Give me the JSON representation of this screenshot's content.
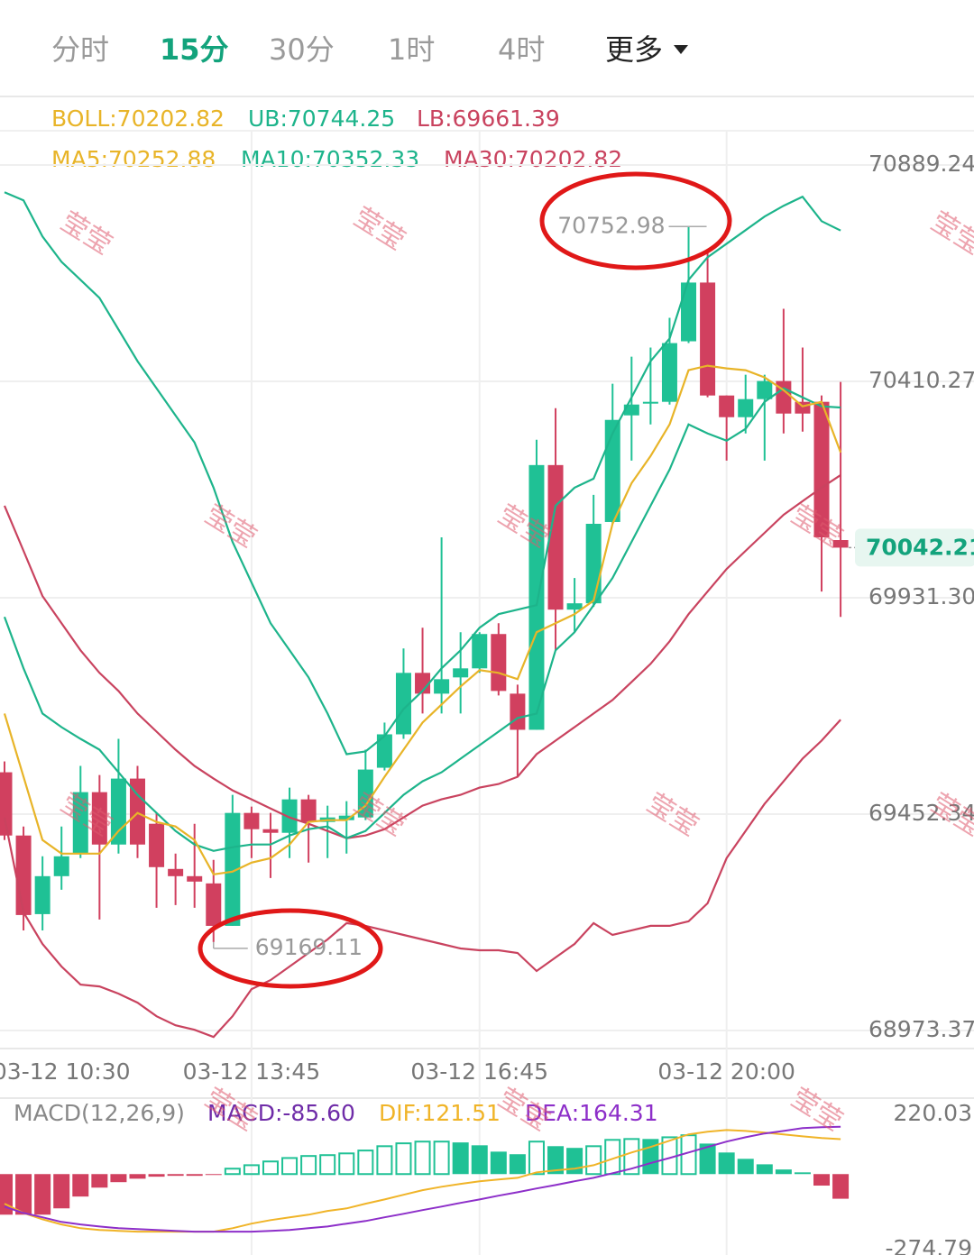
{
  "tabs": [
    {
      "label": "分时"
    },
    {
      "label": "15分",
      "active": true
    },
    {
      "label": "30分"
    },
    {
      "label": "1时"
    },
    {
      "label": "4时"
    },
    {
      "label": "更多",
      "menu": true
    }
  ],
  "watermark": "莹莹",
  "chart_data": [
    {
      "type": "candlestick",
      "legend": [
        [
          {
            "text": "BOLL:70202.82",
            "color": "#e8b428"
          },
          {
            "text": "UB:70744.25",
            "color": "#1db48b"
          },
          {
            "text": "LB:69661.39",
            "color": "#c9435f"
          }
        ],
        [
          {
            "text": "MA5:70252.88",
            "color": "#e8b428"
          },
          {
            "text": "MA10:70352.33",
            "color": "#1db48b"
          },
          {
            "text": "MA30:70202.82",
            "color": "#c9435f"
          }
        ]
      ],
      "categories": [
        null,
        null,
        null,
        "03-12 10:30",
        null,
        null,
        null,
        null,
        null,
        null,
        null,
        null,
        null,
        "03-12 13:45",
        null,
        null,
        null,
        null,
        null,
        null,
        null,
        null,
        null,
        null,
        null,
        "03-12 16:45",
        null,
        null,
        null,
        null,
        null,
        null,
        null,
        null,
        null,
        null,
        null,
        null,
        "03-12 20:00",
        null,
        null,
        null,
        null,
        null,
        null
      ],
      "open": [
        69545,
        69405,
        69231,
        69315,
        69365,
        69501,
        69385,
        69531,
        69431,
        69331,
        69315,
        69299,
        69205,
        69455,
        69419,
        69411,
        69485,
        69435,
        69439,
        69445,
        69555,
        69629,
        69765,
        69719,
        69755,
        69775,
        69851,
        69719,
        69639,
        70225,
        69905,
        69919,
        70099,
        70335,
        70361,
        70365,
        70499,
        70629,
        70379,
        70331,
        70371,
        70411,
        70365,
        70365,
        70059
      ],
      "high": [
        69569,
        69425,
        69359,
        69425,
        69559,
        69539,
        69619,
        69559,
        69455,
        69365,
        69431,
        69351,
        69495,
        69469,
        69455,
        69511,
        69495,
        69471,
        69481,
        69595,
        69655,
        69819,
        69865,
        70065,
        69855,
        69855,
        69875,
        69739,
        70281,
        70351,
        69975,
        70159,
        70405,
        70465,
        70485,
        70551,
        70752.98,
        70695,
        70379,
        70425,
        70425,
        70571,
        70485,
        70379,
        70409
      ],
      "low": [
        69395,
        69195,
        69195,
        69285,
        69355,
        69219,
        69365,
        69355,
        69245,
        69251,
        69245,
        69169.11,
        69205,
        69355,
        69311,
        69355,
        69345,
        69355,
        69365,
        69439,
        69549,
        69619,
        69675,
        69675,
        69675,
        69765,
        69715,
        69535,
        69639,
        69815,
        69855,
        69911,
        70095,
        70235,
        70315,
        70359,
        70495,
        70375,
        70235,
        70295,
        70235,
        70295,
        70299,
        69945,
        69889
      ],
      "close": [
        69405,
        69229,
        69315,
        69359,
        69501,
        69385,
        69531,
        69385,
        69335,
        69315,
        69303,
        69205,
        69455,
        69419,
        69411,
        69485,
        69435,
        69445,
        69449,
        69551,
        69629,
        69765,
        69719,
        69751,
        69775,
        69851,
        69725,
        69639,
        70225,
        69905,
        69919,
        70095,
        70325,
        70359,
        70365,
        70495,
        70629,
        70379,
        70331,
        70371,
        70411,
        70339,
        70339,
        70065,
        70042.21
      ],
      "up_color": "#1fc195",
      "down_color": "#d1405f",
      "series": [
        {
          "color": "#1db48b",
          "values": [
            70829,
            70811,
            70731,
            70675,
            70635,
            70595,
            70525,
            70455,
            70395,
            70335,
            70275,
            70175,
            70055,
            69965,
            69875,
            69815,
            69755,
            69675,
            69585,
            69591,
            69625,
            69685,
            69725,
            69775,
            69815,
            69865,
            69895,
            69905,
            69915,
            70135,
            70175,
            70195,
            70295,
            70375,
            70455,
            70505,
            70635,
            70685,
            70715,
            70745,
            70775,
            70799,
            70819,
            70765,
            70744.25
          ]
        },
        {
          "color": "#c9435f",
          "values": [
            69445,
            69235,
            69165,
            69115,
            69075,
            69071,
            69055,
            69035,
            69005,
            68985,
            68975,
            68959,
            69005,
            69065,
            69085,
            69115,
            69145,
            69175,
            69211,
            69205,
            69195,
            69185,
            69175,
            69165,
            69155,
            69151,
            69151,
            69145,
            69105,
            69135,
            69165,
            69211,
            69185,
            69195,
            69205,
            69205,
            69215,
            69255,
            69355,
            69415,
            69475,
            69525,
            69575,
            69615,
            69661.39
          ]
        },
        {
          "color": "#c9435f",
          "values": [
            70135,
            70035,
            69935,
            69875,
            69815,
            69765,
            69725,
            69675,
            69635,
            69595,
            69559,
            69531,
            69505,
            69485,
            69465,
            69445,
            69431,
            69415,
            69399,
            69405,
            69419,
            69445,
            69471,
            69485,
            69495,
            69511,
            69519,
            69535,
            69585,
            69615,
            69645,
            69675,
            69705,
            69745,
            69785,
            69835,
            69895,
            69945,
            69995,
            70035,
            70075,
            70115,
            70145,
            70175,
            70202.82
          ]
        },
        {
          "color": "#1db48b",
          "values": [
            69889,
            69775,
            69675,
            69645,
            69619,
            69595,
            69545,
            69495,
            69455,
            69415,
            69385,
            69371,
            69379,
            69385,
            69385,
            69405,
            69419,
            69425,
            69399,
            69415,
            69455,
            69495,
            69525,
            69545,
            69575,
            69605,
            69635,
            69665,
            69675,
            69815,
            69855,
            69915,
            69975,
            70055,
            70135,
            70215,
            70315,
            70295,
            70279,
            70305,
            70365,
            70395,
            70375,
            70355,
            70352.33
          ]
        },
        {
          "color": "#e8b428",
          "values": [
            69675,
            69535,
            69395,
            69365,
            69365,
            69365,
            69415,
            69455,
            69435,
            69425,
            69395,
            69319,
            69325,
            69345,
            69355,
            69385,
            69435,
            69439,
            69439,
            69471,
            69535,
            69595,
            69655,
            69695,
            69735,
            69771,
            69765,
            69751,
            69855,
            69875,
            69895,
            69925,
            70095,
            70185,
            70245,
            70315,
            70435,
            70445,
            70439,
            70435,
            70419,
            70391,
            70355,
            70365,
            70252.88
          ]
        }
      ],
      "ylim": [
        68973.37,
        70889.24
      ],
      "yticks": [
        70889.24,
        70410.27,
        {
          "value": 69931.3,
          "label": "69931.30"
        },
        69452.34,
        68973.37
      ],
      "grid": true,
      "last_price_color": "#13a37c",
      "highlight_color": "#e01818"
    },
    {
      "type": "macd",
      "title": "MACD(12,26,9)",
      "legend": [
        {
          "text": "MACD:-85.60",
          "color": "#6f2ca8"
        },
        {
          "text": "DIF:121.51",
          "color": "#f0b428"
        },
        {
          "text": "DEA:164.31",
          "color": "#8d2fc9"
        }
      ],
      "histogram": [
        -141,
        -141,
        -141,
        -119,
        -78,
        -47,
        -28,
        -16,
        -9,
        -6,
        -6,
        -3,
        22,
        34,
        47,
        59,
        66,
        69,
        75,
        85,
        100,
        110,
        116,
        116,
        110,
        100,
        78,
        69,
        116,
        97,
        91,
        100,
        122,
        125,
        122,
        131,
        138,
        106,
        75,
        53,
        34,
        16,
        6,
        -40,
        -85.6
      ],
      "up_color": "#1fc195",
      "down_color": "#d1405f",
      "series": [
        {
          "color": "#f0b428",
          "values": [
            -103,
            -135,
            -157,
            -175,
            -188,
            -194,
            -197,
            -200,
            -200,
            -200,
            -200,
            -200,
            -188,
            -172,
            -160,
            -150,
            -141,
            -128,
            -119,
            -103,
            -88,
            -72,
            -56,
            -44,
            -34,
            -25,
            -19,
            -13,
            6,
            13,
            19,
            31,
            53,
            75,
            94,
            116,
            138,
            147,
            153,
            150,
            144,
            138,
            131,
            125,
            121.51
          ]
        },
        {
          "color": "#8d2fc9",
          "values": [
            -113,
            -135,
            -150,
            -166,
            -175,
            -182,
            -188,
            -191,
            -194,
            -197,
            -200,
            -200,
            -200,
            -200,
            -197,
            -194,
            -188,
            -182,
            -172,
            -163,
            -150,
            -138,
            -125,
            -113,
            -100,
            -88,
            -75,
            -63,
            -50,
            -38,
            -25,
            -13,
            3,
            19,
            38,
            56,
            75,
            94,
            113,
            128,
            141,
            150,
            160,
            163,
            164.31
          ]
        }
      ],
      "ylim": [
        -274.79,
        220.03
      ],
      "yticks": [
        220.03,
        -274.79
      ]
    }
  ]
}
